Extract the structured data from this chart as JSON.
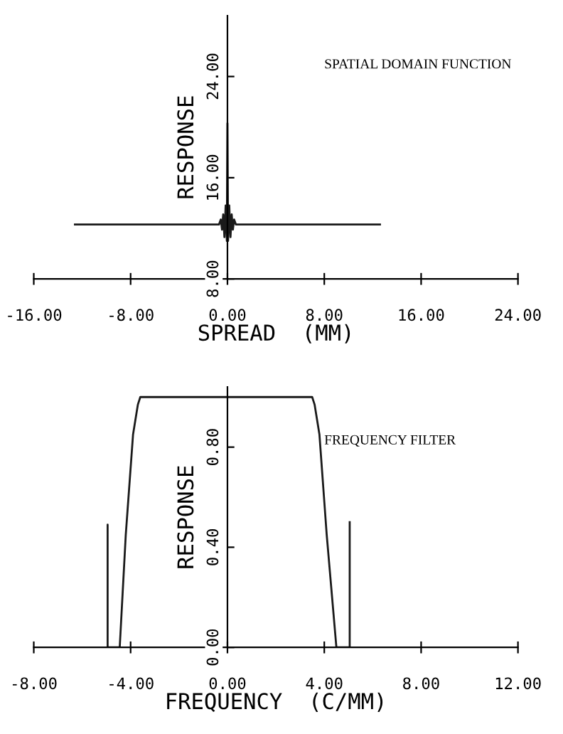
{
  "chart_data": [
    {
      "type": "line",
      "xlabel": "SPREAD  (MM)",
      "ylabel": "RESPONSE",
      "annotations": [
        "SPATIAL DOMAIN FUNCTION"
      ],
      "series": [
        {
          "color": "#1a1a1a",
          "x": [
            -12.6,
            -0.7,
            -0.55,
            -0.45,
            -0.35,
            -0.25,
            -0.15,
            -0.05,
            0,
            0.05,
            0.15,
            0.25,
            0.35,
            0.45,
            0.55,
            0.7,
            12.6
          ],
          "values": [
            12.3,
            12.3,
            12.7,
            11.9,
            13.1,
            11.3,
            13.8,
            11,
            20.3,
            11,
            13.8,
            11.3,
            13.1,
            11.9,
            12.7,
            12.3,
            12.3
          ]
        }
      ],
      "xlim": [
        -16,
        24
      ],
      "ylim": [
        8,
        28.8
      ],
      "xticks": [
        {
          "value": -16,
          "label": "-16.00"
        },
        {
          "value": -8,
          "label": "-8.00"
        },
        {
          "value": 0,
          "label": "0.00"
        },
        {
          "value": 8,
          "label": "8.00"
        },
        {
          "value": 16,
          "label": "16.00"
        },
        {
          "value": 24,
          "label": "24.00"
        }
      ],
      "yticks": [
        {
          "value": 8,
          "label": "8.00"
        },
        {
          "value": 16,
          "label": "16.00"
        },
        {
          "value": 24,
          "label": "24.00"
        }
      ]
    },
    {
      "type": "line",
      "xlabel": "FREQUENCY  (C/MM)",
      "ylabel": "RESPONSE",
      "annotations": [
        "FREQUENCY FILTER"
      ],
      "series": [
        {
          "color": "#1a1a1a",
          "x": [
            -4.95,
            -4.95,
            -4.95,
            -4.45,
            -4.2,
            -3.9,
            -3.7,
            -3.6,
            3.5,
            3.6,
            3.8,
            4.1,
            4.5,
            5.05,
            5.05
          ],
          "values": [
            0,
            0.49,
            0,
            0,
            0.45,
            0.85,
            0.97,
            1.0,
            1.0,
            0.97,
            0.85,
            0.45,
            0,
            0,
            0.5
          ]
        }
      ],
      "xlim": [
        -8,
        12
      ],
      "ylim": [
        0,
        1.04
      ],
      "xticks": [
        {
          "value": -8,
          "label": "-8.00"
        },
        {
          "value": -4,
          "label": "-4.00"
        },
        {
          "value": 0,
          "label": "0.00"
        },
        {
          "value": 4,
          "label": "4.00"
        },
        {
          "value": 8,
          "label": "8.00"
        },
        {
          "value": 12,
          "label": "12.00"
        }
      ],
      "yticks": [
        {
          "value": 0,
          "label": "0.00"
        },
        {
          "value": 0.4,
          "label": "0.40"
        },
        {
          "value": 0.8,
          "label": "0.80"
        }
      ]
    }
  ]
}
